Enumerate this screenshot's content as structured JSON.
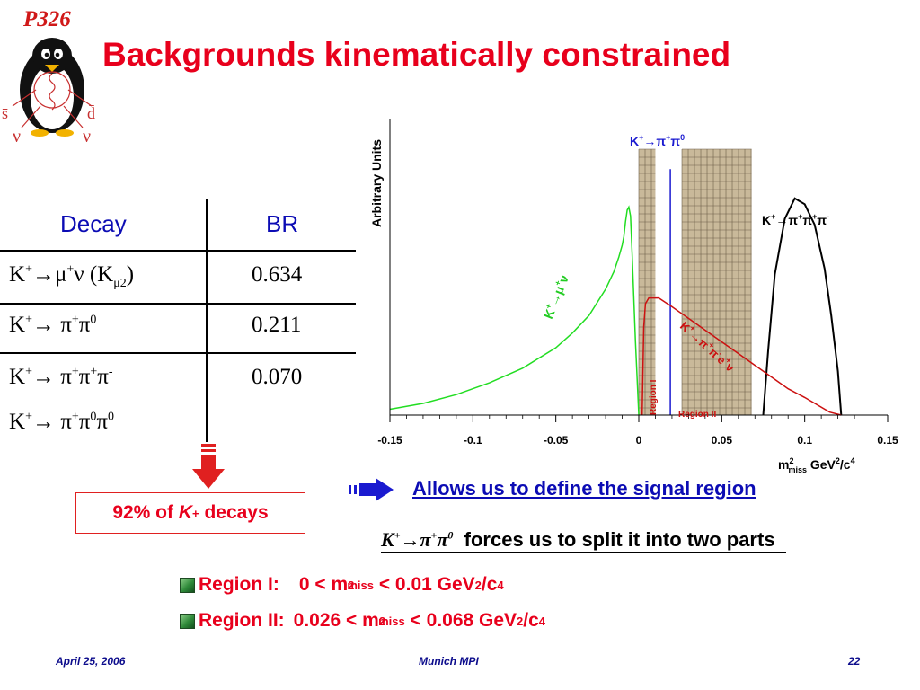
{
  "logo": {
    "text": "P326",
    "left_quark": "s̄",
    "right_quark": "d̄",
    "left_nu": "ν",
    "right_nu": "ν"
  },
  "title": "Backgrounds kinematically constrained",
  "table": {
    "headers": {
      "decay": "Decay",
      "br": "BR"
    },
    "rows": [
      {
        "br": "0.634"
      },
      {
        "br": "0.211"
      },
      {
        "br": "0.070"
      }
    ]
  },
  "fraction_box": {
    "prefix": "92% of ",
    "k": "K",
    "sup": "+",
    "suffix": " decays"
  },
  "plot": {
    "ylabel": "Arbitrary Units",
    "xticks": [
      "-0.15",
      "-0.1",
      "-0.05",
      "0",
      "0.05",
      "0.1",
      "0.15"
    ],
    "region1_label": "Region I",
    "region2_label": "Region II",
    "colors": {
      "kmu2": "#22dd22",
      "kpi2": "#1a1ad0",
      "k3pi": "#000000",
      "ke4": "#cc1010",
      "region_fill": "#c9b99a"
    }
  },
  "chart_data": {
    "type": "line",
    "ylabel": "Arbitrary Units",
    "xlabel": "m²miss GeV²/c⁴",
    "xlim": [
      -0.15,
      0.15
    ],
    "regions": [
      {
        "name": "Region I",
        "x": [
          0,
          0.01
        ]
      },
      {
        "name": "Region II",
        "x": [
          0.026,
          0.068
        ]
      }
    ],
    "series": [
      {
        "name": "K⁺→μ⁺ν",
        "x": [
          -0.15,
          -0.13,
          -0.11,
          -0.09,
          -0.07,
          -0.05,
          -0.04,
          -0.03,
          -0.02,
          -0.015,
          -0.012,
          -0.01,
          -0.009,
          -0.008,
          -0.007,
          -0.006,
          -0.005,
          -0.004,
          -0.002,
          0.0
        ],
        "y": [
          0.02,
          0.04,
          0.07,
          0.11,
          0.16,
          0.23,
          0.28,
          0.34,
          0.43,
          0.49,
          0.54,
          0.58,
          0.61,
          0.66,
          0.7,
          0.71,
          0.68,
          0.55,
          0.25,
          0.0
        ]
      },
      {
        "name": "K⁺→π⁺π⁰",
        "x": [
          0.019,
          0.019
        ],
        "y": [
          0.0,
          0.84
        ]
      },
      {
        "name": "K⁺→π⁺π⁺π⁻",
        "x": [
          0.075,
          0.078,
          0.082,
          0.088,
          0.094,
          0.1,
          0.106,
          0.112,
          0.116,
          0.12,
          0.122
        ],
        "y": [
          0.0,
          0.22,
          0.48,
          0.67,
          0.74,
          0.72,
          0.65,
          0.5,
          0.34,
          0.15,
          0.0
        ]
      },
      {
        "name": "K⁺→π⁺π⁻e⁺ν",
        "x": [
          0.002,
          0.003,
          0.004,
          0.006,
          0.012,
          0.02,
          0.03,
          0.04,
          0.05,
          0.06,
          0.07,
          0.08,
          0.09,
          0.1,
          0.115,
          0.122
        ],
        "y": [
          0.0,
          0.3,
          0.38,
          0.4,
          0.4,
          0.37,
          0.33,
          0.29,
          0.25,
          0.21,
          0.17,
          0.13,
          0.09,
          0.06,
          0.01,
          0.0
        ]
      }
    ]
  },
  "signal_text": "Allows us to define the signal region",
  "split_text": {
    "suffix": " forces us to split it into two parts"
  },
  "regions": {
    "r1": {
      "label": "Region I:",
      "lo": "0 < m",
      "sup": "2",
      "sub": "miss",
      "hi": " < 0.01 GeV",
      "unit_sup": "2",
      "unit": "/c",
      "unit_sup2": "4"
    },
    "r2": {
      "label": "Region II:",
      "lo": "0.026 < m",
      "sup": "2",
      "sub": "miss",
      "hi": " < 0.068 GeV",
      "unit_sup": "2",
      "unit": "/c",
      "unit_sup2": "4"
    }
  },
  "footer": {
    "date": "April 25, 2006",
    "venue": "Munich MPI",
    "page": "22"
  }
}
